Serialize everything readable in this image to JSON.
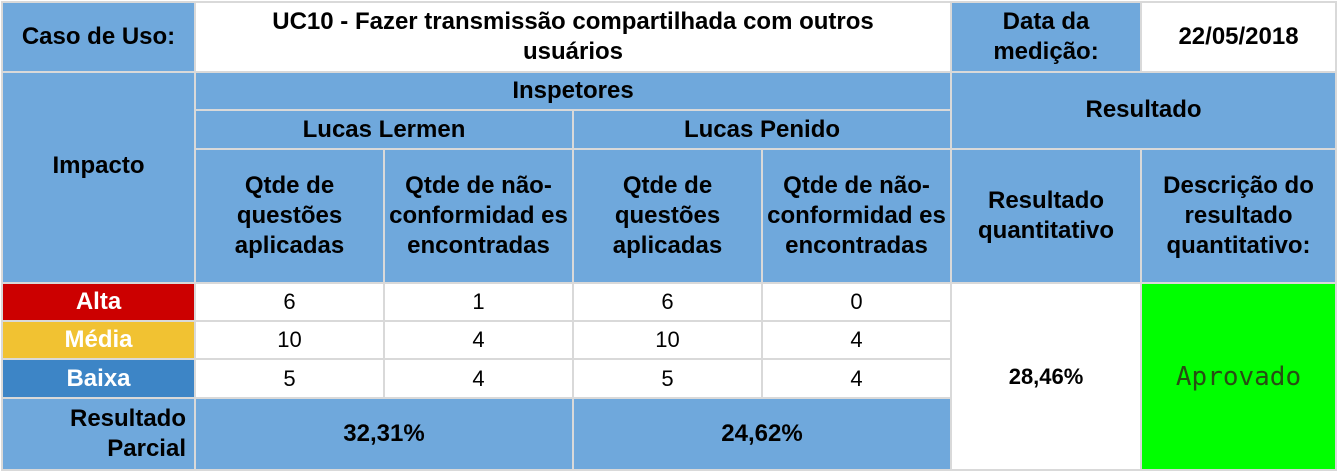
{
  "header": {
    "use_case_label": "Caso de Uso:",
    "use_case_value": "UC10 - Fazer transmissão compartilhada com outros usuários",
    "date_label": "Data da medição:",
    "date_value": "22/05/2018"
  },
  "columns": {
    "impact": "Impacto",
    "inspectors": "Inspetores",
    "result": "Resultado",
    "inspector_1": "Lucas Lermen",
    "inspector_2": "Lucas Penido",
    "questions": "Qtde de questões aplicadas",
    "nonconformities": "Qtde de não-conformidad es encontradas",
    "quantitative": "Resultado quantitativo",
    "description": "Descrição do resultado quantitativo:"
  },
  "colors": {
    "header_blue": "#6fa8dc",
    "alta": "#cc0000",
    "media": "#f1c232",
    "baixa": "#3d85c6",
    "approved": "#00ff00"
  },
  "rows": [
    {
      "impact": "Alta",
      "i1_questions": "6",
      "i1_nc": "1",
      "i2_questions": "6",
      "i2_nc": "0"
    },
    {
      "impact": "Média",
      "i1_questions": "10",
      "i1_nc": "4",
      "i2_questions": "10",
      "i2_nc": "4"
    },
    {
      "impact": "Baixa",
      "i1_questions": "5",
      "i1_nc": "4",
      "i2_questions": "5",
      "i2_nc": "4"
    }
  ],
  "partial": {
    "label": "Resultado Parcial",
    "inspector_1": "32,31%",
    "inspector_2": "24,62%"
  },
  "final": {
    "quantitative": "28,46%",
    "description": "Aprovado"
  }
}
